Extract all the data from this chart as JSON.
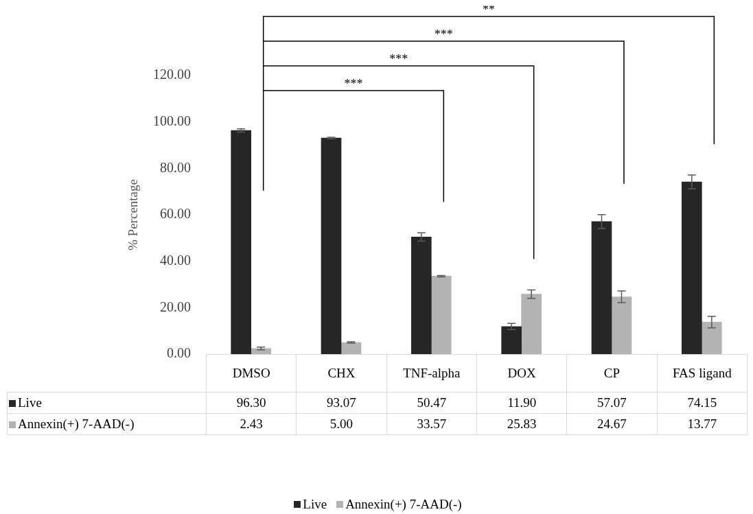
{
  "chart_data": {
    "type": "bar",
    "ylabel": "% Percentage",
    "categories": [
      "DMSO",
      "CHX",
      "TNF-alpha",
      "DOX",
      "CP",
      "FAS ligand"
    ],
    "series": [
      {
        "name": "Live",
        "color": "#262626",
        "values": [
          96.3,
          93.07,
          50.47,
          11.9,
          57.07,
          74.15
        ],
        "errors": [
          0.7,
          0.3,
          1.8,
          1.3,
          3.0,
          3.0
        ],
        "value_labels": [
          "96.30",
          "93.07",
          "50.47",
          "11.90",
          "57.07",
          "74.15"
        ]
      },
      {
        "name": "Annexin(+) 7-AAD(-)",
        "color": "#b3b3b3",
        "values": [
          2.43,
          5.0,
          33.57,
          25.83,
          24.67,
          13.77
        ],
        "errors": [
          0.6,
          0.3,
          0.3,
          1.8,
          2.5,
          2.5
        ],
        "value_labels": [
          "2.43",
          "5.00",
          "33.57",
          "25.83",
          "24.67",
          "13.77"
        ]
      }
    ],
    "ylim": [
      0,
      120
    ],
    "yticks": [
      {
        "value": 0,
        "label": "0.00"
      },
      {
        "value": 20,
        "label": "20.00"
      },
      {
        "value": 40,
        "label": "40.00"
      },
      {
        "value": 60,
        "label": "60.00"
      },
      {
        "value": 80,
        "label": "80.00"
      },
      {
        "value": 100,
        "label": "100.00"
      },
      {
        "value": 120,
        "label": "120.00"
      }
    ],
    "grid": false,
    "legend": "bottom",
    "annotations": [
      "**",
      "***",
      "***",
      "***"
    ]
  }
}
